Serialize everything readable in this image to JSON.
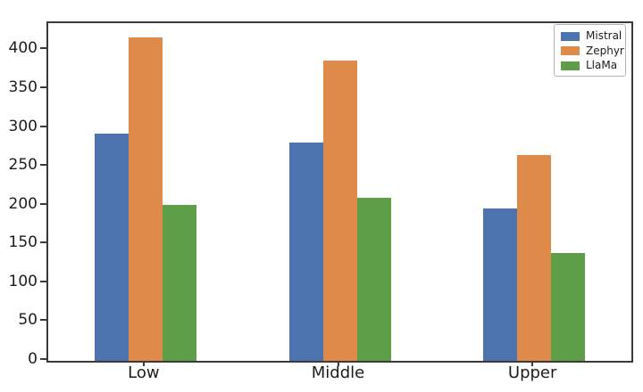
{
  "chart_data": {
    "type": "bar",
    "categories": [
      "Low",
      "Middle",
      "Upper"
    ],
    "series": [
      {
        "name": "Mistral",
        "color": "#4c73ae",
        "values": [
          293,
          281,
          196
        ]
      },
      {
        "name": "Zephyr",
        "color": "#de8a4a",
        "values": [
          417,
          387,
          265
        ]
      },
      {
        "name": "LlaMa",
        "color": "#5f9e49",
        "values": [
          201,
          210,
          139
        ]
      }
    ],
    "title": "",
    "xlabel": "",
    "ylabel": "",
    "ylim": [
      0,
      435
    ],
    "yticks": [
      0,
      50,
      100,
      150,
      200,
      250,
      300,
      350,
      400
    ],
    "legend_position": "upper right",
    "grid": false
  },
  "style_colors": {
    "spine": "#3a3a3a",
    "tick_label": "#1c1c1c",
    "legend_border": "#b6b6b6",
    "background": "#ffffff"
  }
}
